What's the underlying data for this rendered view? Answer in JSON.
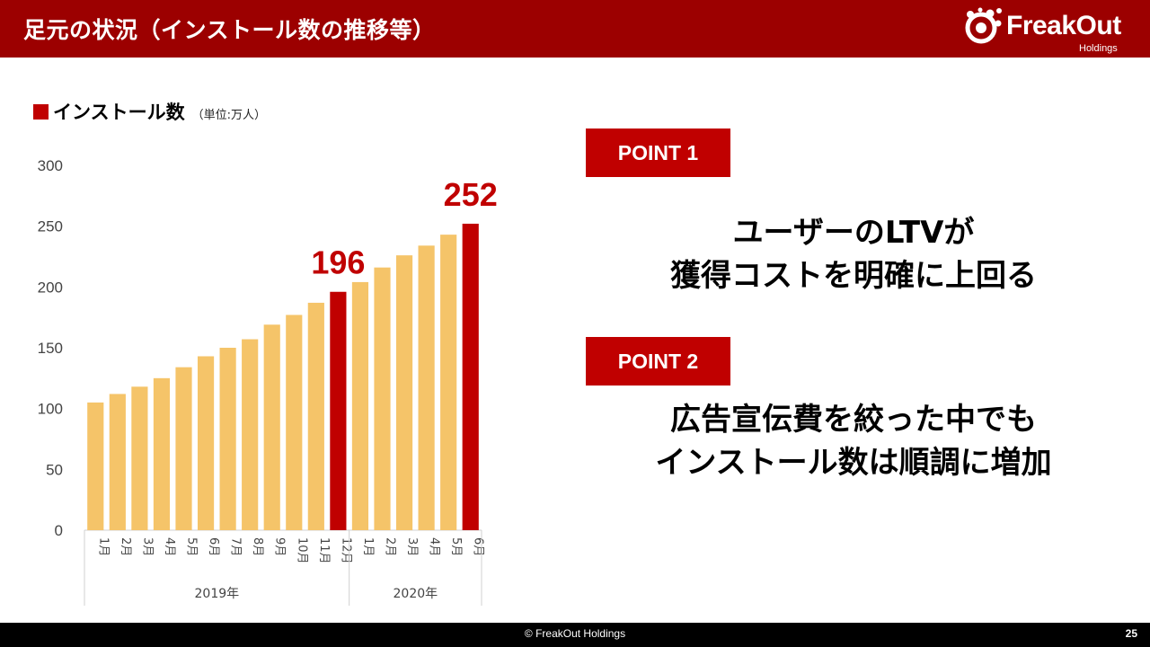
{
  "header": {
    "title": "足元の状況（インストール数の推移等）"
  },
  "logo": {
    "name": "FreakOut",
    "sub": "Holdings"
  },
  "legend": {
    "label": "インストール数",
    "unit": "（単位:万人）"
  },
  "chart_data": {
    "type": "bar",
    "title": "",
    "xlabel": "",
    "ylabel": "",
    "ylim": [
      0,
      300
    ],
    "yticks": [
      0,
      50,
      100,
      150,
      200,
      250,
      300
    ],
    "categories": [
      "1月",
      "2月",
      "3月",
      "4月",
      "5月",
      "6月",
      "7月",
      "8月",
      "9月",
      "10月",
      "11月",
      "12月",
      "1月",
      "2月",
      "3月",
      "4月",
      "5月",
      "6月"
    ],
    "groups": [
      {
        "label": "2019年",
        "count": 12
      },
      {
        "label": "2020年",
        "count": 6
      }
    ],
    "values": [
      105,
      112,
      118,
      125,
      134,
      143,
      150,
      157,
      169,
      177,
      187,
      196,
      204,
      216,
      226,
      234,
      243,
      252
    ],
    "highlight": [
      11,
      17
    ],
    "data_labels": [
      {
        "index": 11,
        "text": "196"
      },
      {
        "index": 17,
        "text": "252"
      }
    ],
    "colors": {
      "bar": "#f5c469",
      "highlight": "#c00000",
      "label": "#c00000"
    },
    "grid": false,
    "legend": "top-left"
  },
  "points": [
    {
      "badge": "POINT 1",
      "line1": "ユーザーのLTVが",
      "line2": "獲得コストを明確に上回る"
    },
    {
      "badge": "POINT 2",
      "line1": "広告宣伝費を絞った中でも",
      "line2": "インストール数は順調に増加"
    }
  ],
  "footer": {
    "copyright": "© FreakOut Holdings",
    "page": "25"
  }
}
